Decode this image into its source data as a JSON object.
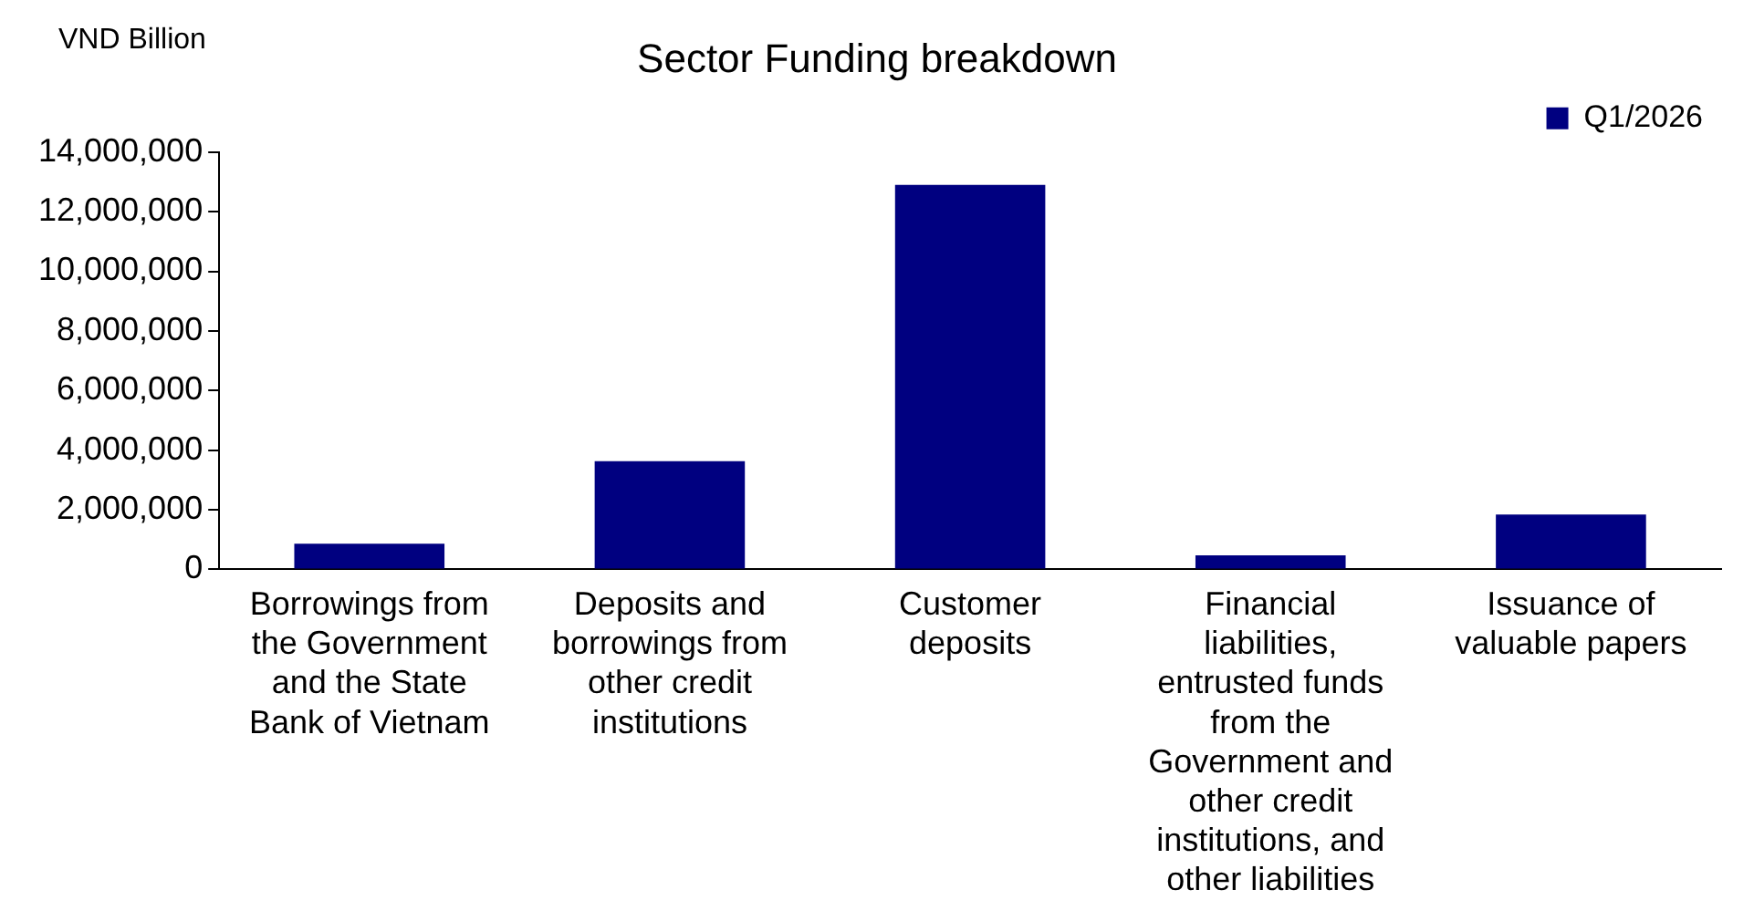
{
  "chart_data": {
    "type": "bar",
    "title": "Sector Funding breakdown",
    "ylabel": "VND Billion",
    "categories": [
      "Borrowings from the Government and the State Bank of Vietnam",
      "Deposits and borrowings from other credit institutions",
      "Customer deposits",
      "Financial liabilities, entrusted funds from the Government and other credit institutions, and other liabilities",
      "Issuance of valuable papers"
    ],
    "series": [
      {
        "name": "Q1/2026",
        "color": "#000080",
        "values": [
          860000,
          3630000,
          12900000,
          470000,
          1840000
        ]
      }
    ],
    "ylim": [
      0,
      14000000
    ],
    "yticks": [
      0,
      {
        "value": 2000000,
        "label": "2,000,000"
      },
      {
        "value": 4000000,
        "label": "4,000,000"
      },
      {
        "value": 6000000,
        "label": "6,000,000"
      },
      {
        "value": 8000000,
        "label": "8,000,000"
      },
      {
        "value": 10000000,
        "label": "10,000,000"
      },
      {
        "value": 12000000,
        "label": "12,000,000"
      },
      {
        "value": 14000000,
        "label": "14,000,000"
      }
    ],
    "grid": false,
    "legend": "top right"
  }
}
